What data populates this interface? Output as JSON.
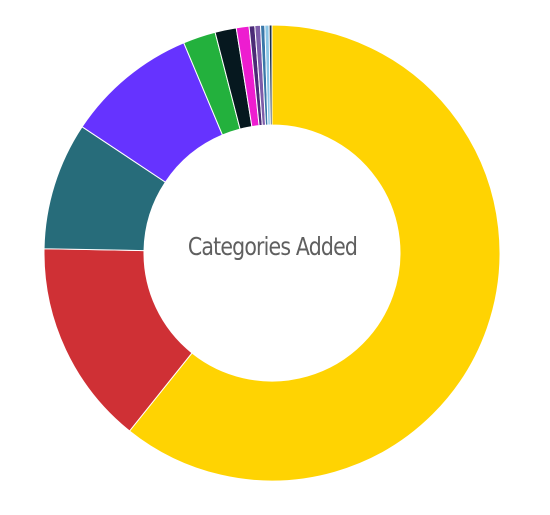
{
  "chart_data": {
    "type": "pie",
    "variant": "donut",
    "title": "Categories Added",
    "title_position": "center",
    "legend": "none",
    "slices": [
      {
        "value": 60.5,
        "color": "#FFD302"
      },
      {
        "value": 14.5,
        "color": "#CF3035"
      },
      {
        "value": 9.0,
        "color": "#276C7A"
      },
      {
        "value": 9.3,
        "color": "#6633FF"
      },
      {
        "value": 2.3,
        "color": "#23B13D"
      },
      {
        "value": 1.5,
        "color": "#06181F"
      },
      {
        "value": 0.9,
        "color": "#ED1DD0"
      },
      {
        "value": 0.4,
        "color": "#4B2B77"
      },
      {
        "value": 0.4,
        "color": "#7D5CA9"
      },
      {
        "value": 0.3,
        "color": "#3A78A9"
      },
      {
        "value": 0.3,
        "color": "#8CC6E6"
      },
      {
        "value": 0.2,
        "color": "#1B2F49"
      }
    ]
  }
}
